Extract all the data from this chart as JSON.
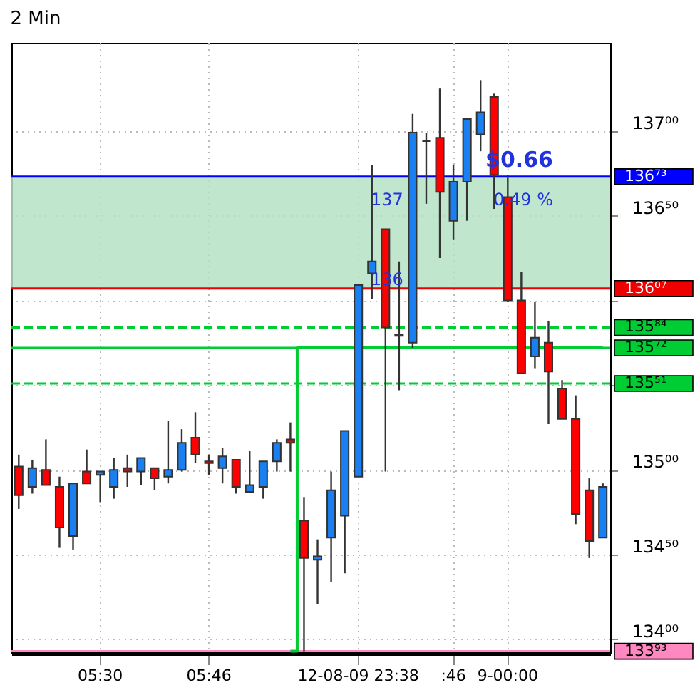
{
  "chart_data": {
    "type": "candlestick",
    "title": "2 Min",
    "categories": [
      null,
      null,
      null,
      null,
      null,
      null,
      "05:30",
      null,
      null,
      null,
      null,
      null,
      null,
      null,
      "05:46",
      null,
      null,
      null,
      null,
      null,
      null,
      null,
      null,
      null,
      null,
      "12-08-09 23:38",
      null,
      null,
      null,
      null,
      null,
      null,
      ":46",
      null,
      null,
      null,
      "9-00:00",
      null,
      null,
      null,
      null,
      null,
      null,
      null
    ],
    "ohlc": [
      [
        135.02,
        135.09,
        134.77,
        134.85
      ],
      [
        134.9,
        135.06,
        134.86,
        135.01
      ],
      [
        135.0,
        135.18,
        134.91,
        134.91
      ],
      [
        134.9,
        134.96,
        134.54,
        134.66
      ],
      [
        134.61,
        134.92,
        134.53,
        134.92
      ],
      [
        134.99,
        135.12,
        134.92,
        134.92
      ],
      [
        134.97,
        134.99,
        134.81,
        134.99
      ],
      [
        134.9,
        135.07,
        134.83,
        135.0
      ],
      [
        135.01,
        135.09,
        134.9,
        134.99
      ],
      [
        134.99,
        135.07,
        134.91,
        135.07
      ],
      [
        135.01,
        135.01,
        134.88,
        134.95
      ],
      [
        134.96,
        135.29,
        134.92,
        135.0
      ],
      [
        135.0,
        135.24,
        134.99,
        135.16
      ],
      [
        135.19,
        135.34,
        135.04,
        135.09
      ],
      [
        135.05,
        135.09,
        134.97,
        135.04
      ],
      [
        135.01,
        135.13,
        134.92,
        135.08
      ],
      [
        135.06,
        135.06,
        134.86,
        134.9
      ],
      [
        134.87,
        135.11,
        134.87,
        134.91
      ],
      [
        134.9,
        135.05,
        134.83,
        135.05
      ],
      [
        135.05,
        135.18,
        134.99,
        135.16
      ],
      [
        135.18,
        135.28,
        134.99,
        135.16
      ],
      [
        134.7,
        134.84,
        133.93,
        134.48
      ],
      [
        134.47,
        134.59,
        134.21,
        134.49
      ],
      [
        134.6,
        134.99,
        134.34,
        134.88
      ],
      [
        134.73,
        135.23,
        134.39,
        135.23
      ],
      [
        134.96,
        136.09,
        134.96,
        136.09
      ],
      [
        136.16,
        136.8,
        136.01,
        136.23
      ],
      [
        136.42,
        136.42,
        134.99,
        135.84
      ],
      [
        135.8,
        136.23,
        135.47,
        135.79
      ],
      [
        135.75,
        137.1,
        135.72,
        136.99
      ],
      [
        136.94,
        136.99,
        136.57,
        136.94
      ],
      [
        136.96,
        137.25,
        136.25,
        136.64
      ],
      [
        136.47,
        136.8,
        136.36,
        136.7
      ],
      [
        136.7,
        137.07,
        136.47,
        137.07
      ],
      [
        136.98,
        137.3,
        136.88,
        137.11
      ],
      [
        137.2,
        137.22,
        136.54,
        136.74
      ],
      [
        136.61,
        136.74,
        135.99,
        136.0
      ],
      [
        136.0,
        136.17,
        135.57,
        135.57
      ],
      [
        135.67,
        135.99,
        135.6,
        135.78
      ],
      [
        135.75,
        135.88,
        135.27,
        135.58
      ],
      [
        135.48,
        135.53,
        135.3,
        135.3
      ],
      [
        135.3,
        135.44,
        134.68,
        134.74
      ],
      [
        134.88,
        134.95,
        134.48,
        134.58
      ],
      [
        134.6,
        134.92,
        134.6,
        134.9
      ]
    ],
    "colors": [
      "#ff0000",
      "#1a7ff0",
      "#ff0000",
      "#ff0000",
      "#1a7ff0",
      "#ff0000",
      "#1a7ff0",
      "#1a7ff0",
      "#ff0000",
      "#1a7ff0",
      "#ff0000",
      "#1a7ff0",
      "#1a7ff0",
      "#ff0000",
      "#ff0000",
      "#1a7ff0",
      "#ff0000",
      "#1a7ff0",
      "#1a7ff0",
      "#1a7ff0",
      "#ff0000",
      "#ff0000",
      "#1a7ff0",
      "#1a7ff0",
      "#1a7ff0",
      "#1a7ff0",
      "#1a7ff0",
      "#ff0000",
      "#ff0000",
      "#1a7ff0",
      "#333333",
      "#ff0000",
      "#1a7ff0",
      "#1a7ff0",
      "#1a7ff0",
      "#ff0000",
      "#ff0000",
      "#ff0000",
      "#1a7ff0",
      "#ff0000",
      "#ff0000",
      "#ff0000",
      "#ff0000",
      "#1a7ff0"
    ],
    "series": [
      {
        "type": "step",
        "color": "#00cc33",
        "values": [
          null,
          null,
          null,
          null,
          null,
          null,
          null,
          null,
          null,
          null,
          null,
          null,
          null,
          null,
          null,
          null,
          null,
          null,
          null,
          null,
          133.93,
          135.72,
          135.72,
          135.72,
          135.72,
          135.72,
          135.72,
          135.72,
          135.72,
          135.72,
          135.72,
          135.72,
          135.72,
          135.72,
          135.72,
          135.72,
          135.72,
          135.72,
          135.72,
          135.72,
          135.72,
          135.72,
          135.72,
          135.72
        ]
      }
    ],
    "ylim": [
      133.92,
      137.52
    ],
    "yticks": [
      {
        "value": 134,
        "label": "134⁰⁰"
      },
      {
        "value": 134.5,
        "label": "134⁵⁰"
      },
      {
        "value": 135,
        "label": "135⁰⁰"
      },
      {
        "value": 135.5,
        "label": null
      },
      {
        "value": 136,
        "label": null
      },
      {
        "value": 136.5,
        "label": "136⁵⁰"
      },
      {
        "value": 137,
        "label": "137⁰⁰"
      }
    ],
    "grid": true,
    "bands": [
      {
        "axis": "y",
        "from": 136.07,
        "to": 136.73,
        "color": "#b5e2c6"
      }
    ],
    "ref_lines": [
      {
        "axis": "y",
        "value": 136.73,
        "label": "136⁷³",
        "color": "#0000ff"
      },
      {
        "axis": "y",
        "value": 136.07,
        "label": "136⁰⁷",
        "color": "#ee0000"
      },
      {
        "axis": "y",
        "value": 135.84,
        "label": "135⁸⁴",
        "color": "#00cc33",
        "line_style": "dashed"
      },
      {
        "axis": "y",
        "value": 135.72,
        "label": "135⁷²",
        "color": "#00cc33"
      },
      {
        "axis": "y",
        "value": 135.51,
        "label": "135⁵¹",
        "color": "#00cc33",
        "line_style": "dashed"
      },
      {
        "axis": "y",
        "value": 133.93,
        "label": "133⁹³",
        "color": "#ff88c0"
      }
    ],
    "annotations": [
      "$0.66",
      "0.49 %",
      "137",
      "136"
    ]
  }
}
